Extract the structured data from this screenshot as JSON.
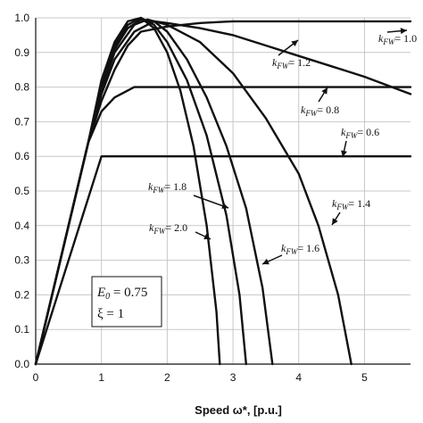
{
  "chart_data": {
    "type": "line",
    "title": "",
    "xlabel": "Speed ω*, [p.u.]",
    "ylabel": "",
    "xlim": [
      0,
      5.7
    ],
    "ylim": [
      0,
      1.0
    ],
    "x_ticks": [
      0,
      1,
      2,
      3,
      4,
      5
    ],
    "y_ticks": [
      0.0,
      0.1,
      0.2,
      0.3,
      0.4,
      0.5,
      0.6,
      0.7,
      0.8,
      0.9,
      1.0
    ],
    "grid": "vertical-and-horizontal",
    "series": [
      {
        "name": "k_FW = 0.6",
        "x": [
          0,
          1.0,
          5.7
        ],
        "y": [
          0,
          0.6,
          0.6
        ]
      },
      {
        "name": "k_FW = 0.8",
        "x": [
          0,
          0.8,
          1.0,
          1.2,
          1.5,
          5.7
        ],
        "y": [
          0,
          0.64,
          0.73,
          0.77,
          0.8,
          0.8
        ]
      },
      {
        "name": "k_FW = 1.0",
        "x": [
          0,
          0.8,
          1.0,
          1.2,
          1.4,
          1.6,
          2.0,
          2.5,
          3.0,
          4.0,
          5.7
        ],
        "y": [
          0,
          0.64,
          0.76,
          0.85,
          0.92,
          0.96,
          0.975,
          0.985,
          0.99,
          0.99,
          0.99
        ]
      },
      {
        "name": "k_FW = 1.2",
        "x": [
          0,
          0.8,
          1.0,
          1.2,
          1.5,
          1.8,
          2.0,
          2.5,
          3.0,
          3.5,
          4.0,
          4.5,
          5.0,
          5.7
        ],
        "y": [
          0,
          0.64,
          0.78,
          0.88,
          0.96,
          0.99,
          0.985,
          0.97,
          0.95,
          0.92,
          0.89,
          0.86,
          0.83,
          0.78
        ]
      },
      {
        "name": "k_FW = 1.4",
        "x": [
          0,
          0.8,
          1.0,
          1.2,
          1.5,
          1.7,
          2.0,
          2.5,
          3.0,
          3.5,
          4.0,
          4.3,
          4.6,
          4.8
        ],
        "y": [
          0,
          0.64,
          0.79,
          0.9,
          0.98,
          0.995,
          0.98,
          0.93,
          0.84,
          0.71,
          0.55,
          0.4,
          0.2,
          0.0
        ]
      },
      {
        "name": "k_FW = 1.6",
        "x": [
          0,
          0.8,
          1.0,
          1.2,
          1.4,
          1.6,
          1.8,
          2.0,
          2.3,
          2.6,
          2.9,
          3.2,
          3.45,
          3.6
        ],
        "y": [
          0,
          0.64,
          0.8,
          0.91,
          0.97,
          0.995,
          0.99,
          0.96,
          0.88,
          0.77,
          0.63,
          0.45,
          0.22,
          0.0
        ]
      },
      {
        "name": "k_FW = 1.8",
        "x": [
          0,
          0.8,
          1.0,
          1.2,
          1.4,
          1.6,
          1.8,
          2.0,
          2.3,
          2.6,
          2.9,
          3.1,
          3.2
        ],
        "y": [
          0,
          0.64,
          0.81,
          0.92,
          0.98,
          1.0,
          0.98,
          0.93,
          0.82,
          0.66,
          0.43,
          0.2,
          0.0
        ]
      },
      {
        "name": "k_FW = 2.0",
        "x": [
          0,
          0.8,
          1.0,
          1.2,
          1.4,
          1.6,
          1.8,
          2.0,
          2.2,
          2.4,
          2.6,
          2.75,
          2.8
        ],
        "y": [
          0,
          0.64,
          0.82,
          0.93,
          0.99,
          1.0,
          0.97,
          0.9,
          0.79,
          0.63,
          0.4,
          0.15,
          0.0
        ]
      }
    ],
    "annotations": [
      {
        "base": "k",
        "sub": "FW",
        "value": "= 1.0",
        "series": "k_FW = 1.0"
      },
      {
        "base": "k",
        "sub": "FW",
        "value": "= 1.2",
        "series": "k_FW = 1.2"
      },
      {
        "base": "k",
        "sub": "FW",
        "value": "= 0.8",
        "series": "k_FW = 0.8"
      },
      {
        "base": "k",
        "sub": "FW",
        "value": "= 0.6",
        "series": "k_FW = 0.6"
      },
      {
        "base": "k",
        "sub": "FW",
        "value": "= 1.8",
        "series": "k_FW = 1.8"
      },
      {
        "base": "k",
        "sub": "FW",
        "value": "= 2.0",
        "series": "k_FW = 2.0"
      },
      {
        "base": "k",
        "sub": "FW",
        "value": "= 1.4",
        "series": "k_FW = 1.4"
      },
      {
        "base": "k",
        "sub": "FW",
        "value": "= 1.6",
        "series": "k_FW = 1.6"
      }
    ],
    "param_box": {
      "line1": {
        "base": "E",
        "sub": "0",
        "value": " = 0.75"
      },
      "line2": "ξ = 1"
    }
  }
}
